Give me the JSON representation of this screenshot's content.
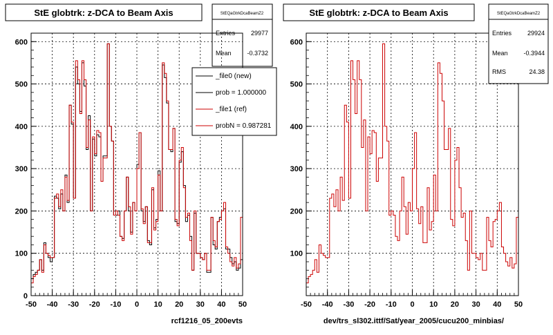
{
  "colors": {
    "new": "#000000",
    "ref": "#cc0000",
    "grid": "#000000",
    "frame": "#000000",
    "background": "#ffffff"
  },
  "chart_data": [
    {
      "type": "line",
      "title": "StE globtrk: z-DCA to Beam Axis",
      "xlabel": "rcf1216_05_200evts",
      "ylabel": "",
      "xlim": [
        -50,
        50
      ],
      "ylim": [
        0,
        620
      ],
      "xticks": [
        -50,
        -40,
        -30,
        -20,
        -10,
        0,
        10,
        20,
        30,
        40,
        50
      ],
      "yticks": [
        0,
        100,
        200,
        300,
        400,
        500,
        600
      ],
      "grid": true,
      "legend_position": "top-right",
      "stats": {
        "name": "StEQaGtrkDcaBeamZ2",
        "rows": [
          {
            "label": "Entries",
            "value": "29977"
          },
          {
            "label": "Mean",
            "value": "-0.3732"
          }
        ]
      },
      "legend": [
        {
          "label": "_file0 (new)",
          "color": "#000000"
        },
        {
          "label": "prob = 1.000000",
          "color": "#000000"
        },
        {
          "label": "_file1 (ref)",
          "color": "#cc0000"
        },
        {
          "label": "probN = 0.987281",
          "color": "#cc0000"
        }
      ],
      "bin_edges": [
        -50,
        50
      ],
      "series": [
        {
          "name": "_file0 (new)",
          "color": "#000000",
          "values": [
            40,
            50,
            55,
            60,
            85,
            60,
            125,
            100,
            90,
            80,
            90,
            235,
            230,
            205,
            240,
            200,
            285,
            220,
            450,
            405,
            230,
            540,
            500,
            435,
            550,
            495,
            345,
            425,
            200,
            370,
            330,
            380,
            375,
            270,
            330,
            330,
            595,
            400,
            365,
            190,
            190,
            200,
            140,
            135,
            200,
            280,
            200,
            150,
            220,
            200,
            310,
            385,
            200,
            175,
            210,
            130,
            120,
            250,
            160,
            180,
            295,
            200,
            545,
            515,
            455,
            345,
            340,
            395,
            175,
            170,
            315,
            340,
            260,
            175,
            190,
            140,
            60,
            195,
            100,
            100,
            90,
            85,
            100,
            55,
            55,
            185,
            120,
            110,
            175,
            185,
            200,
            205,
            110,
            110,
            90,
            75,
            80,
            60,
            65,
            85
          ]
        },
        {
          "name": "_file1 (ref)",
          "color": "#cc0000",
          "values": [
            30,
            45,
            50,
            60,
            85,
            55,
            120,
            100,
            95,
            90,
            90,
            230,
            240,
            210,
            250,
            200,
            280,
            225,
            450,
            410,
            230,
            555,
            510,
            430,
            555,
            510,
            350,
            415,
            200,
            375,
            335,
            390,
            385,
            270,
            325,
            325,
            595,
            400,
            365,
            190,
            200,
            190,
            140,
            130,
            200,
            280,
            210,
            145,
            220,
            200,
            300,
            385,
            205,
            170,
            210,
            125,
            125,
            255,
            155,
            175,
            285,
            200,
            550,
            525,
            460,
            345,
            345,
            395,
            180,
            165,
            320,
            350,
            255,
            185,
            195,
            130,
            60,
            200,
            100,
            100,
            90,
            85,
            100,
            60,
            60,
            185,
            130,
            115,
            175,
            180,
            200,
            220,
            115,
            100,
            80,
            70,
            90,
            65,
            75,
            185
          ]
        }
      ]
    },
    {
      "type": "line",
      "title": "StE globtrk: z-DCA to Beam Axis",
      "xlabel": "dev/trs_sl302.ittf/Sat/year_2005/cucu200_minbias/",
      "ylabel": "",
      "xlim": [
        -50,
        50
      ],
      "ylim": [
        0,
        620
      ],
      "xticks": [
        -50,
        -40,
        -30,
        -20,
        -10,
        0,
        10,
        20,
        30,
        40,
        50
      ],
      "yticks": [
        100,
        200,
        300,
        400,
        500,
        600
      ],
      "grid": true,
      "stats": {
        "name": "StEQaGtrkDcaBeamZ2",
        "rows": [
          {
            "label": "Entries",
            "value": "29924"
          },
          {
            "label": "Mean",
            "value": "-0.3944"
          },
          {
            "label": "RMS",
            "value": "24.38"
          }
        ]
      },
      "bin_edges": [
        -50,
        50
      ],
      "series": [
        {
          "name": "_file1 (ref)",
          "color": "#cc0000",
          "values": [
            30,
            45,
            50,
            60,
            85,
            55,
            120,
            100,
            95,
            90,
            90,
            230,
            240,
            210,
            250,
            200,
            280,
            225,
            450,
            410,
            230,
            555,
            510,
            430,
            555,
            510,
            350,
            415,
            200,
            375,
            335,
            390,
            385,
            270,
            325,
            325,
            595,
            400,
            365,
            190,
            200,
            190,
            140,
            130,
            200,
            280,
            210,
            145,
            220,
            200,
            300,
            385,
            205,
            170,
            210,
            125,
            125,
            255,
            155,
            175,
            285,
            200,
            550,
            525,
            460,
            345,
            345,
            395,
            180,
            165,
            320,
            350,
            255,
            185,
            195,
            130,
            60,
            200,
            100,
            100,
            90,
            85,
            100,
            60,
            60,
            185,
            130,
            115,
            175,
            180,
            200,
            220,
            115,
            100,
            80,
            70,
            90,
            65,
            75,
            185
          ]
        }
      ]
    }
  ]
}
